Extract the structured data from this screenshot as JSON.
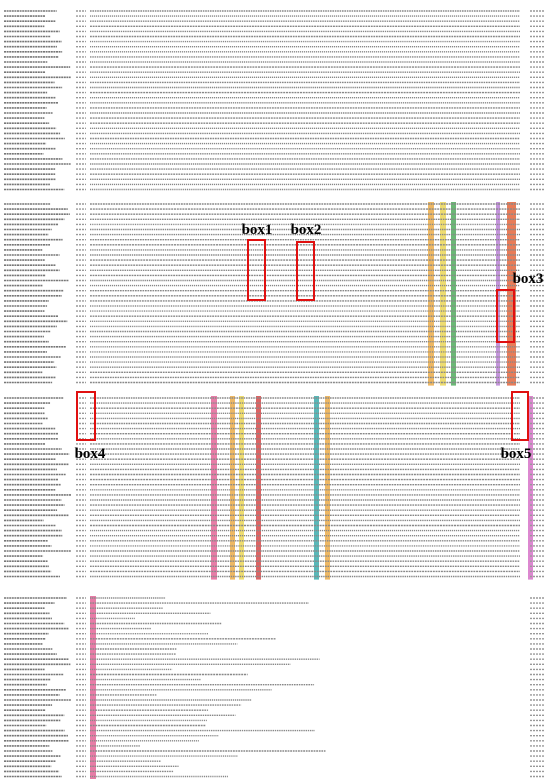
{
  "figure": {
    "box_labels": [
      "box1",
      "box2",
      "box3",
      "box4",
      "box5"
    ]
  }
}
